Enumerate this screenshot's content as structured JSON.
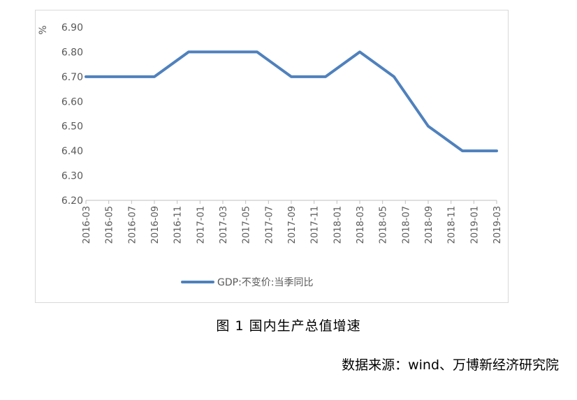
{
  "chart_data": {
    "type": "line",
    "ylabel": "%",
    "ylim": [
      6.2,
      6.9
    ],
    "yticks": [
      "6.20",
      "6.30",
      "6.40",
      "6.50",
      "6.60",
      "6.70",
      "6.80",
      "6.90"
    ],
    "x_tick_labels": [
      "2016-03",
      "2016-05",
      "2016-07",
      "2016-09",
      "2016-11",
      "2017-01",
      "2017-03",
      "2017-05",
      "2017-07",
      "2017-09",
      "2017-11",
      "2018-01",
      "2018-03",
      "2018-05",
      "2018-07",
      "2018-09",
      "2018-11",
      "2019-01",
      "2019-03"
    ],
    "x": [
      "2016-03",
      "2016-06",
      "2016-09",
      "2016-12",
      "2017-03",
      "2017-06",
      "2017-09",
      "2017-12",
      "2018-03",
      "2018-06",
      "2018-09",
      "2018-12",
      "2019-03"
    ],
    "series": [
      {
        "name": "GDP:不变价:当季同比",
        "values": [
          6.7,
          6.7,
          6.7,
          6.8,
          6.8,
          6.8,
          6.7,
          6.7,
          6.8,
          6.7,
          6.5,
          6.4,
          6.4
        ],
        "color": "#4f81bd"
      }
    ],
    "grid": false,
    "legend_position": "bottom"
  },
  "caption": "图 1  国内生产总值增速",
  "source": "数据来源：wind、万博新经济研究院"
}
